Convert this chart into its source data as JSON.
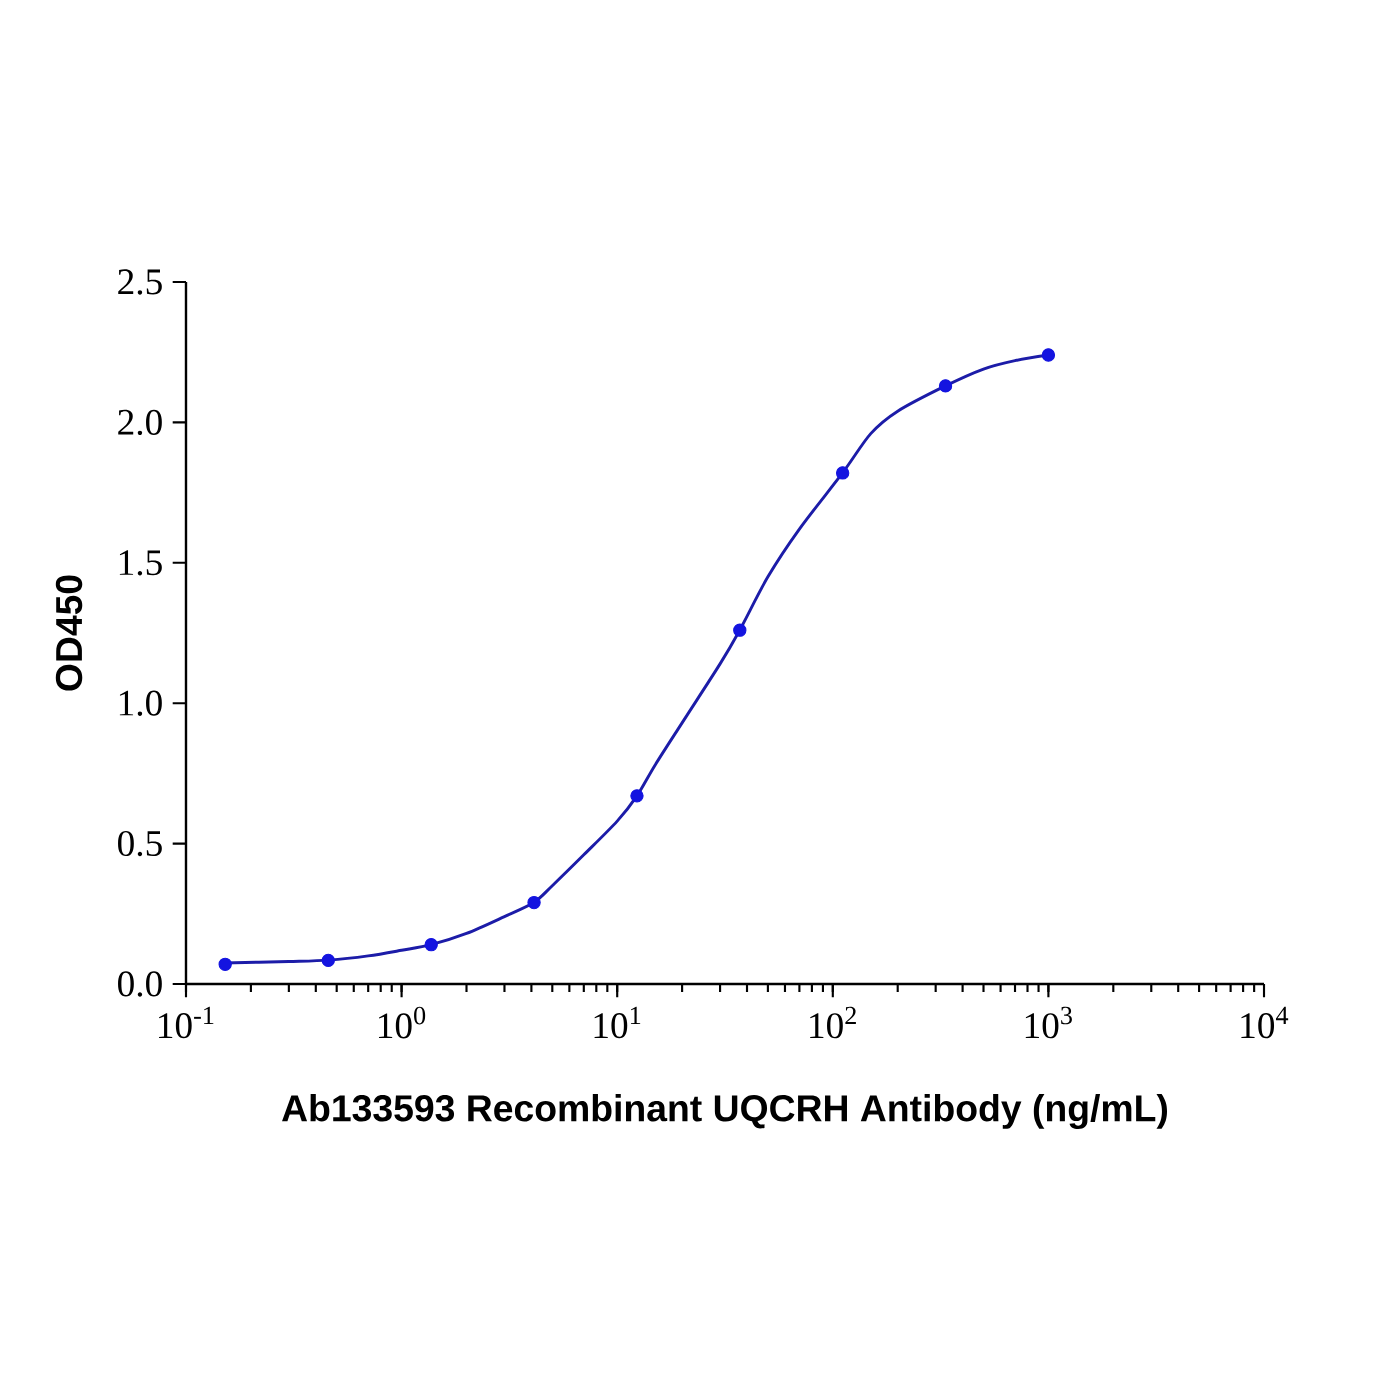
{
  "chart_data": {
    "type": "line",
    "xlabel": "Ab133593 Recombinant UQCRH Antibody (ng/mL)",
    "ylabel": "OD450",
    "log": "x",
    "grid": false,
    "xlim": [
      0.1,
      10000
    ],
    "ylim": [
      0,
      2.5
    ],
    "xticks": [
      {
        "value": 0.1,
        "label": "10$^{-1}$"
      },
      {
        "value": 1,
        "label": "10$^{0}$"
      },
      {
        "value": 10,
        "label": "10$^{1}$"
      },
      {
        "value": 100,
        "label": "10$^{2}$"
      },
      {
        "value": 1000,
        "label": "10$^{3}$"
      },
      {
        "value": 10000,
        "label": "10$^{4}$"
      }
    ],
    "yticks": [
      {
        "value": 0,
        "label": "0.0"
      },
      0.5,
      {
        "value": 1,
        "label": "1.0"
      },
      1.5,
      {
        "value": 2,
        "label": "2.0"
      },
      2.5
    ],
    "series": [
      {
        "color": "#1c1ca8",
        "marker": "none",
        "x": [
          0.15,
          0.3,
          0.46,
          0.7,
          1,
          1.37,
          2,
          3,
          4.1,
          5,
          7,
          10,
          12.35,
          15,
          20,
          30,
          37,
          50,
          70,
          111,
          150,
          200,
          333,
          500,
          700,
          1000
        ],
        "values": [
          0.075,
          0.08,
          0.085,
          0.1,
          0.12,
          0.14,
          0.18,
          0.24,
          0.29,
          0.35,
          0.46,
          0.58,
          0.67,
          0.78,
          0.93,
          1.14,
          1.26,
          1.45,
          1.62,
          1.82,
          1.96,
          2.04,
          2.13,
          2.19,
          2.22,
          2.24
        ]
      },
      {
        "type": "scatter",
        "color": "#1414e0",
        "marker": "circle",
        "x": [
          0.152,
          0.457,
          1.372,
          4.115,
          12.35,
          37.04,
          111.1,
          333.3,
          1000
        ],
        "values": [
          0.07,
          0.084,
          0.14,
          0.29,
          0.67,
          1.26,
          1.82,
          2.13,
          2.24
        ]
      }
    ]
  }
}
